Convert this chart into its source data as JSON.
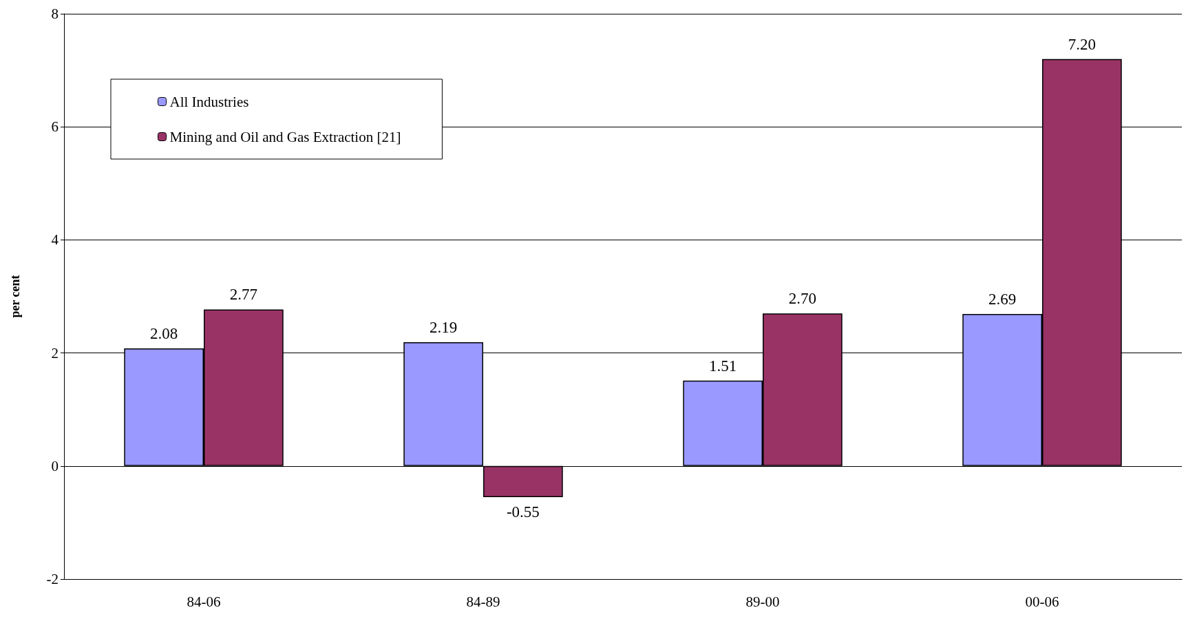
{
  "chart_data": {
    "type": "bar",
    "ylabel": "per cent",
    "categories": [
      "84-06",
      "84-89",
      "89-00",
      "00-06"
    ],
    "series": [
      {
        "name": "All Industries",
        "color": "#9999ff",
        "values": [
          2.08,
          2.19,
          1.51,
          2.69
        ],
        "value_labels": [
          "2.08",
          "2.19",
          "1.51",
          "2.69"
        ]
      },
      {
        "name": "Mining and Oil and Gas Extraction [21]",
        "color": "#993366",
        "values": [
          2.77,
          -0.55,
          2.7,
          7.2
        ],
        "value_labels": [
          "2.77",
          "-0.55",
          "2.70",
          "7.20"
        ]
      }
    ],
    "ylim": [
      -2,
      8
    ],
    "yticks": [
      -2,
      0,
      2,
      4,
      6,
      8
    ],
    "grid": "y",
    "legend": "top left"
  }
}
